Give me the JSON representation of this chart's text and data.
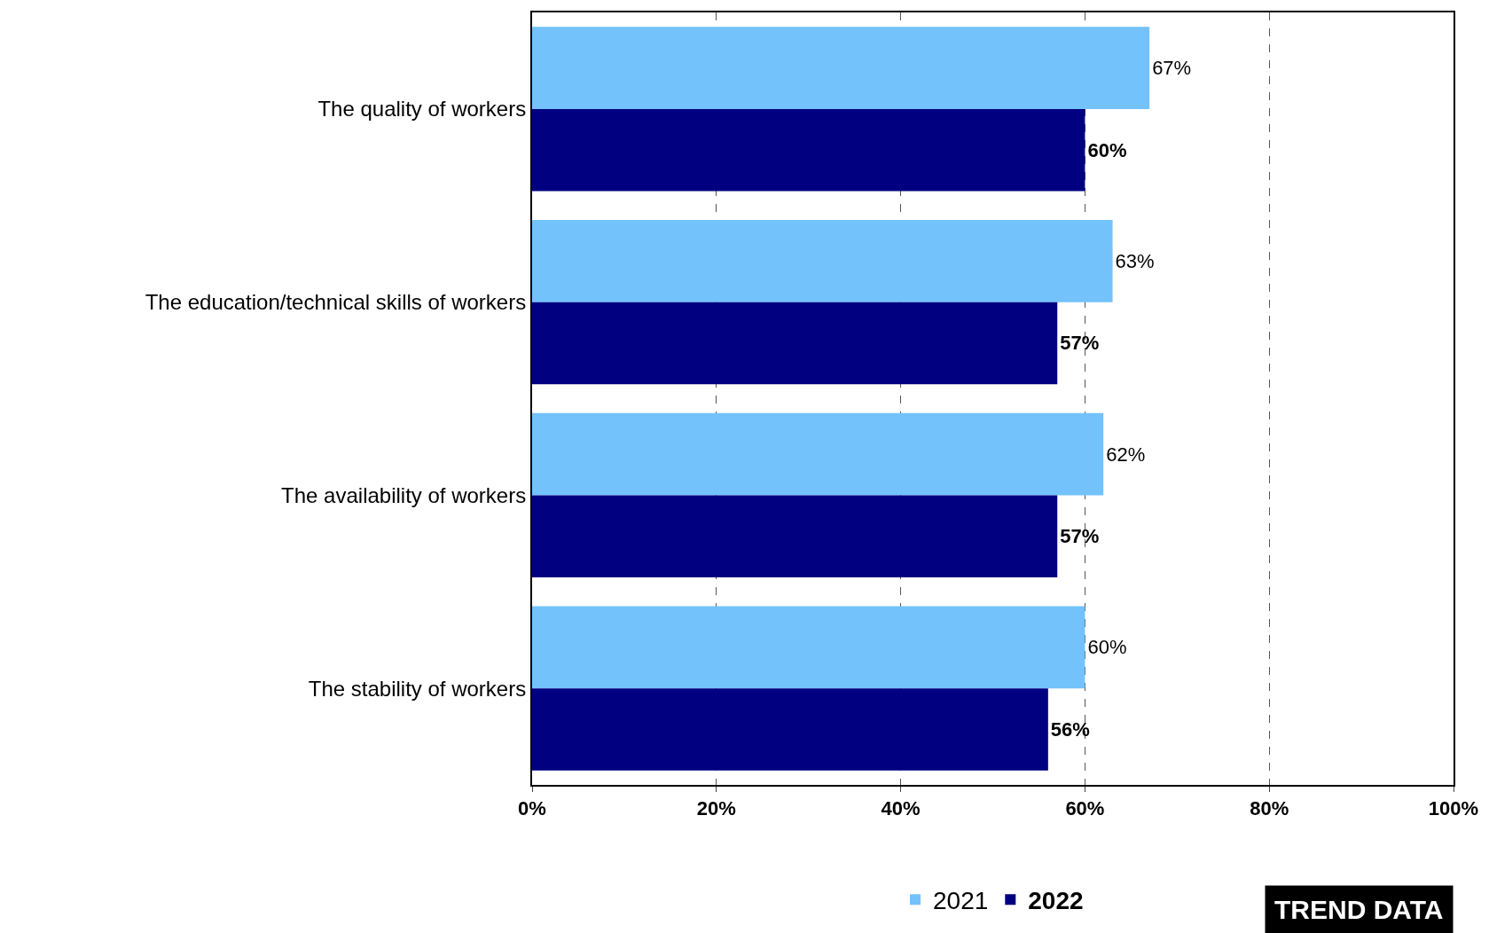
{
  "chart_data": {
    "type": "bar",
    "orientation": "horizontal",
    "categories": [
      "The quality of workers",
      "The education/technical skills of workers",
      "The availability of workers",
      "The stability of workers"
    ],
    "series": [
      {
        "name": "2021",
        "color": "#73c2fb",
        "values": [
          67,
          63,
          62,
          60
        ],
        "value_labels": [
          "67%",
          "63%",
          "62%",
          "60%"
        ]
      },
      {
        "name": "2022",
        "color": "#000080",
        "values": [
          60,
          57,
          57,
          56
        ],
        "value_labels": [
          "60%",
          "57%",
          "57%",
          "56%"
        ]
      }
    ],
    "xlim": [
      0,
      100
    ],
    "xticks": [
      {
        "value": 0,
        "label": "0%"
      },
      {
        "value": 20,
        "label": "20%"
      },
      {
        "value": 40,
        "label": "40%"
      },
      {
        "value": 60,
        "label": "60%"
      },
      {
        "value": 80,
        "label": "80%"
      },
      {
        "value": 100,
        "label": "100%"
      }
    ],
    "grid": "x",
    "legend": "bottom",
    "annotations": [
      "TREND DATA"
    ]
  }
}
